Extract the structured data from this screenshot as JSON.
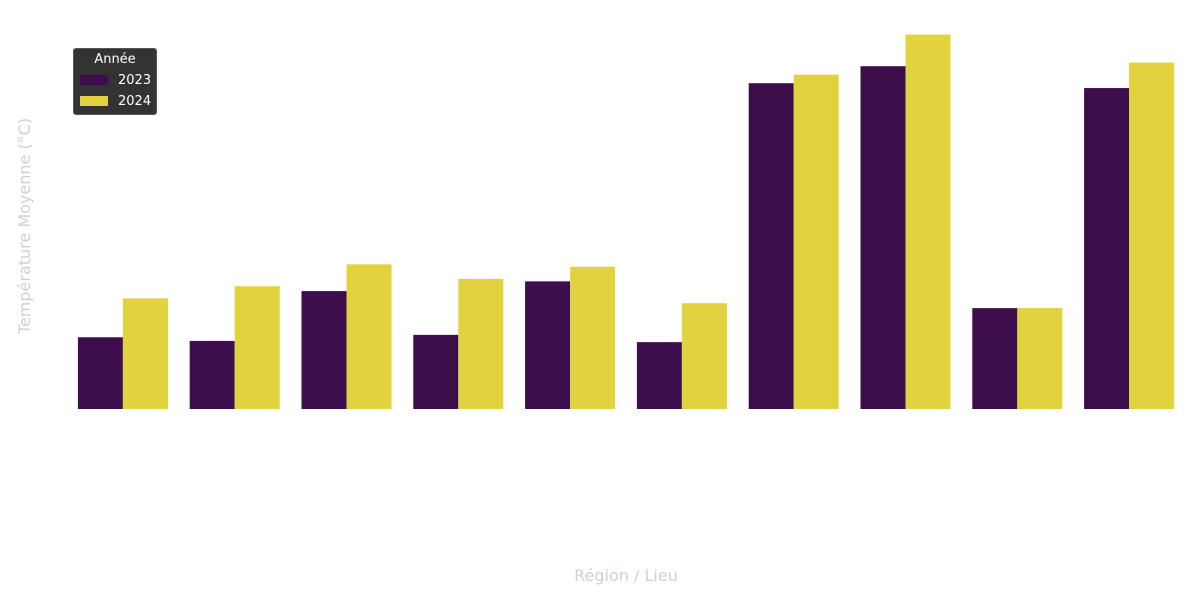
{
  "chart_data": {
    "type": "bar",
    "xlabel": "Région / Lieu",
    "ylabel": "Température Moyenne (°C)",
    "categories": [
      "",
      "",
      "",
      "",
      "",
      "",
      "",
      "",
      "",
      ""
    ],
    "ylim": [
      0,
      32
    ],
    "grid": false,
    "legend": {
      "title": "Année",
      "placement": "top-left"
    },
    "series": [
      {
        "name": "2023",
        "color": "#3e0d4b",
        "values": [
          5.9,
          5.6,
          9.7,
          6.1,
          10.5,
          5.5,
          26.8,
          28.2,
          8.3,
          26.4
        ]
      },
      {
        "name": "2024",
        "color": "#e1d23e",
        "values": [
          9.1,
          10.1,
          11.9,
          10.7,
          11.7,
          8.7,
          27.5,
          30.8,
          8.3,
          28.5
        ]
      }
    ]
  }
}
